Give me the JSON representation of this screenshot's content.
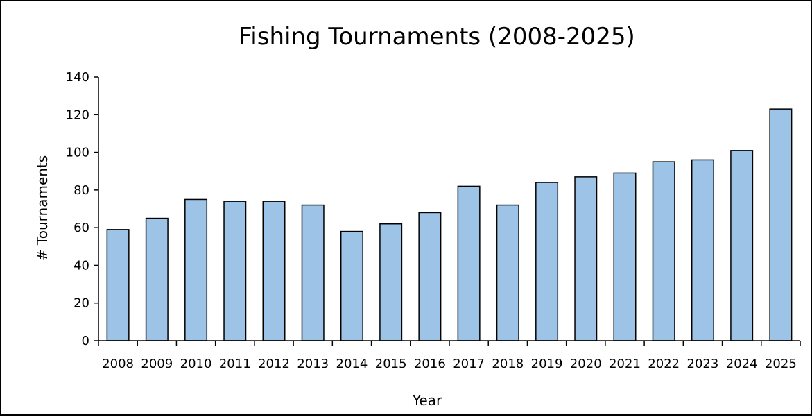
{
  "chart_data": {
    "type": "bar",
    "title": "Fishing Tournaments (2008-2025)",
    "xlabel": "Year",
    "ylabel": "# Tournaments",
    "ylim": [
      0,
      140
    ],
    "yticks": [
      0,
      20,
      40,
      60,
      80,
      100,
      120,
      140
    ],
    "categories": [
      "2008",
      "2009",
      "2010",
      "2011",
      "2012",
      "2013",
      "2014",
      "2015",
      "2016",
      "2017",
      "2018",
      "2019",
      "2020",
      "2021",
      "2022",
      "2023",
      "2024",
      "2025"
    ],
    "values": [
      59,
      65,
      75,
      74,
      74,
      72,
      58,
      62,
      68,
      82,
      72,
      84,
      87,
      89,
      95,
      96,
      101,
      123
    ],
    "grid": false,
    "legend": "none",
    "bar_color": "#9DC3E6",
    "bar_outline": "#000000"
  }
}
